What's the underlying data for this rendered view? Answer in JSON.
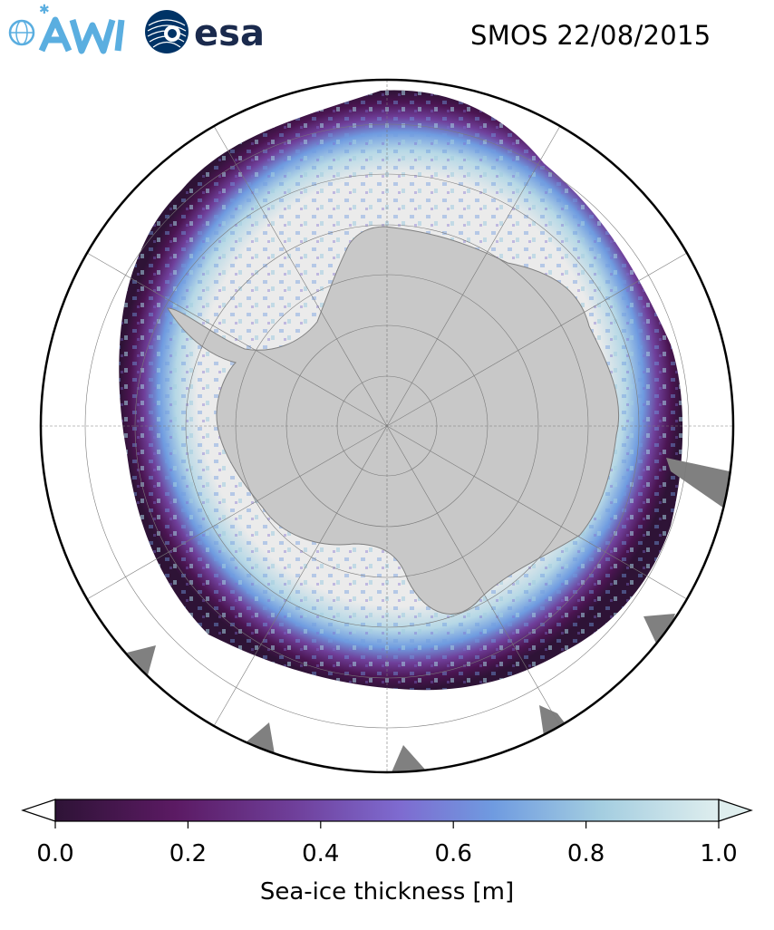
{
  "header": {
    "logo_awi": "AWI",
    "logo_esa": "esa",
    "title": "SMOS 22/08/2015"
  },
  "map": {
    "projection": "south-polar-stereographic",
    "subject": "Antarctic sea ice",
    "colors": {
      "land": "#c8c8c8",
      "ice_shelf_dark": "#808080",
      "thick_ice": "#ebebeb",
      "outline": "#000000",
      "grid": "#7a7a7a"
    }
  },
  "colorbar": {
    "label": "Sea-ice thickness [m]",
    "ticks": [
      "0.0",
      "0.2",
      "0.4",
      "0.6",
      "0.8",
      "1.0"
    ],
    "range": [
      0.0,
      1.0
    ],
    "extend": "both",
    "colormap": [
      "#2e1336",
      "#5b1a63",
      "#6f3f9a",
      "#7e6bd0",
      "#6f9be0",
      "#a3cde0",
      "#dfeeee"
    ]
  }
}
